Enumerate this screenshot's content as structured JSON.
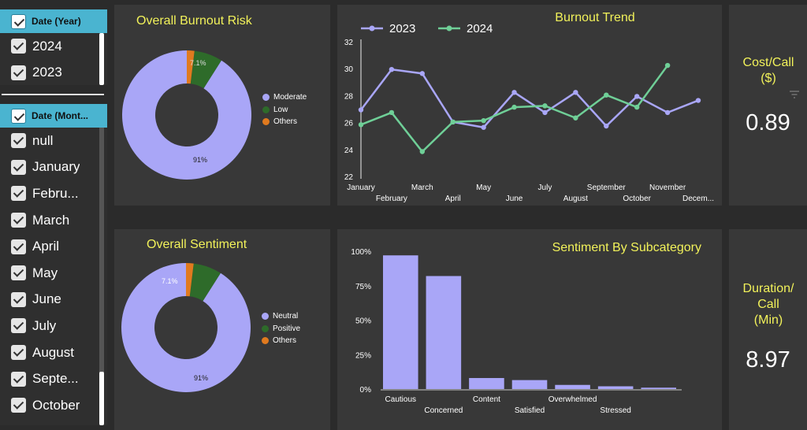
{
  "filters": {
    "year": {
      "header": "Date (Year)",
      "items": [
        "2024",
        "2023"
      ]
    },
    "month": {
      "header": "Date (Mont...",
      "items": [
        "null",
        "January",
        "Febru...",
        "March",
        "April",
        "May",
        "June",
        "July",
        "August",
        "Septe...",
        "October"
      ]
    }
  },
  "burnout_risk": {
    "title": "Overall Burnout Risk",
    "label_main": "91%",
    "label_secondary": "7.1%",
    "legend": [
      "Moderate",
      "Low",
      "Others"
    ]
  },
  "sentiment": {
    "title": "Overall Sentiment",
    "label_main": "91%",
    "label_secondary": "7.1%",
    "legend": [
      "Neutral",
      "Positive",
      "Others"
    ]
  },
  "kpis": {
    "cost_title": "Cost/Call ($)",
    "cost_value": "0.89",
    "duration_title_l1": "Duration/",
    "duration_title_l2": "Call",
    "duration_title_l3": "(Min)",
    "duration_value": "8.97"
  },
  "colors": {
    "primary": "#a9a6f7",
    "secondary": "#2e6b2a",
    "other": "#e07a1f",
    "line2024": "#6fcf97",
    "title": "#f2f25a"
  },
  "chart_data": [
    {
      "type": "pie",
      "title": "Overall Burnout Risk",
      "categories": [
        "Moderate",
        "Low",
        "Others"
      ],
      "values": [
        91,
        7.1,
        1.9
      ]
    },
    {
      "type": "line",
      "title": "Burnout Trend",
      "categories": [
        "January",
        "February",
        "March",
        "April",
        "May",
        "June",
        "July",
        "August",
        "September",
        "October",
        "November",
        "Decem..."
      ],
      "series": [
        {
          "name": "2023",
          "values": [
            27.0,
            30.0,
            29.7,
            26.1,
            25.7,
            28.3,
            26.8,
            28.3,
            25.8,
            28.0,
            26.8,
            27.7
          ]
        },
        {
          "name": "2024",
          "values": [
            25.9,
            26.8,
            23.9,
            26.1,
            26.2,
            27.2,
            27.3,
            26.4,
            28.1,
            27.2,
            30.3,
            null
          ]
        }
      ],
      "ylim": [
        22,
        32
      ],
      "yticks": [
        22,
        24,
        26,
        28,
        30,
        32
      ]
    },
    {
      "type": "pie",
      "title": "Overall Sentiment",
      "categories": [
        "Neutral",
        "Positive",
        "Others"
      ],
      "values": [
        91,
        7.1,
        1.9
      ]
    },
    {
      "type": "bar",
      "title": "Sentiment By Subcategory",
      "categories": [
        "Cautious",
        "Concerned",
        "Content",
        "Satisfied",
        "Overwhelmed",
        "Stressed",
        ""
      ],
      "values": [
        97,
        82,
        8,
        6.5,
        3,
        2,
        1
      ],
      "ylim": [
        0,
        100
      ],
      "yticks": [
        "0%",
        "25%",
        "50%",
        "75%",
        "100%"
      ]
    }
  ]
}
